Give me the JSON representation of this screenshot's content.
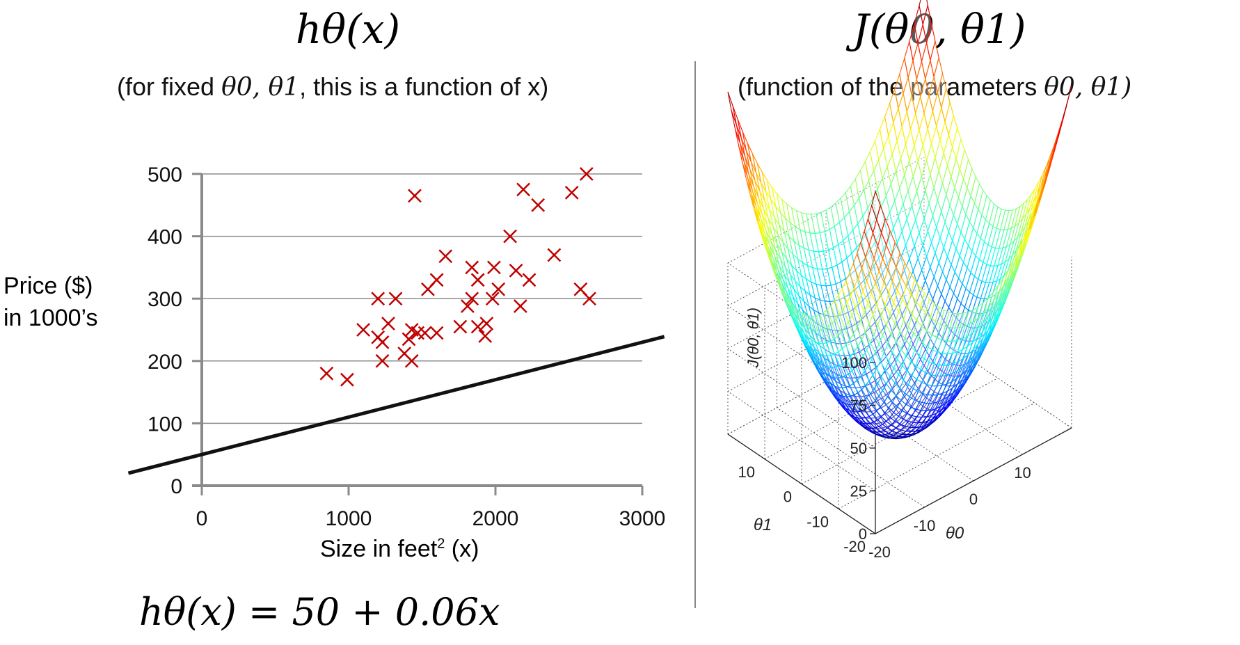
{
  "left_panel": {
    "title": "hθ(x)",
    "subtitle_prefix": "(for fixed",
    "subtitle_params": "θ0, θ1",
    "subtitle_suffix": ", this is a function of x)",
    "equation": "hθ(x) = 50 + 0.06x"
  },
  "right_panel": {
    "title": "J(θ0, θ1)",
    "subtitle_prefix": "(function of the parameters",
    "subtitle_params": "θ0, θ1)"
  },
  "colors": {
    "marker": "#c00000",
    "line": "#111111",
    "grid": "#8c8c8c"
  },
  "chart_data": [
    {
      "type": "scatter",
      "title": "",
      "xlabel": "Size in feet",
      "xlabel_sup": "2",
      "xlabel_suffix": " (x)",
      "ylabel_line1": "Price ($)",
      "ylabel_line2": "in 1000’s",
      "xlim": [
        0,
        3000
      ],
      "ylim": [
        0,
        500
      ],
      "xticks": [
        0,
        1000,
        2000,
        3000
      ],
      "yticks": [
        0,
        100,
        200,
        300,
        400,
        500
      ],
      "xtick_labels": [
        "0",
        "1000",
        "2000",
        "3000"
      ],
      "ytick_labels": [
        "0",
        "100",
        "200",
        "300",
        "400",
        "500"
      ],
      "grid": true,
      "marker": "x",
      "points": [
        [
          850,
          180
        ],
        [
          990,
          170
        ],
        [
          1100,
          250
        ],
        [
          1200,
          300
        ],
        [
          1200,
          238
        ],
        [
          1230,
          230
        ],
        [
          1230,
          200
        ],
        [
          1270,
          260
        ],
        [
          1320,
          300
        ],
        [
          1380,
          212
        ],
        [
          1410,
          235
        ],
        [
          1430,
          200
        ],
        [
          1430,
          250
        ],
        [
          1450,
          465
        ],
        [
          1470,
          245
        ],
        [
          1520,
          245
        ],
        [
          1540,
          315
        ],
        [
          1600,
          330
        ],
        [
          1600,
          245
        ],
        [
          1660,
          368
        ],
        [
          1760,
          255
        ],
        [
          1810,
          288
        ],
        [
          1840,
          350
        ],
        [
          1840,
          300
        ],
        [
          1880,
          330
        ],
        [
          1880,
          255
        ],
        [
          1930,
          240
        ],
        [
          1940,
          260
        ],
        [
          1980,
          300
        ],
        [
          1990,
          350
        ],
        [
          2020,
          315
        ],
        [
          2100,
          400
        ],
        [
          2140,
          345
        ],
        [
          2170,
          288
        ],
        [
          2190,
          475
        ],
        [
          2230,
          330
        ],
        [
          2290,
          450
        ],
        [
          2400,
          370
        ],
        [
          2520,
          470
        ],
        [
          2580,
          315
        ],
        [
          2620,
          500
        ],
        [
          2640,
          300
        ]
      ],
      "line": {
        "name": "hθ(x) = 50 + 0.06x",
        "intercept": 50,
        "slope": 0.06,
        "x_range": [
          -500,
          3150
        ]
      }
    },
    {
      "type": "surface",
      "function": "J(θ0, θ1) ≈ (θ0² + θ1²) / 4",
      "x_axis_label": "θ0",
      "y_axis_label": "θ1",
      "z_axis_label": "J(θ0, θ1)",
      "x_range": [
        -20,
        20
      ],
      "y_range": [
        -20,
        20
      ],
      "z_range": [
        0,
        100
      ],
      "z_ticks": [
        0,
        25,
        50,
        75,
        100
      ],
      "z_tick_labels": [
        "0",
        "25",
        "50",
        "75",
        "100"
      ],
      "theta0_ticks": [
        -20,
        -10,
        0,
        10
      ],
      "theta0_tick_labels": [
        "-20",
        "-10",
        "0",
        "10"
      ],
      "theta1_ticks": [
        -20,
        -10,
        0,
        10
      ],
      "theta1_tick_labels": [
        "-20",
        "-10",
        "0",
        "10"
      ],
      "colormap": "jet"
    }
  ]
}
